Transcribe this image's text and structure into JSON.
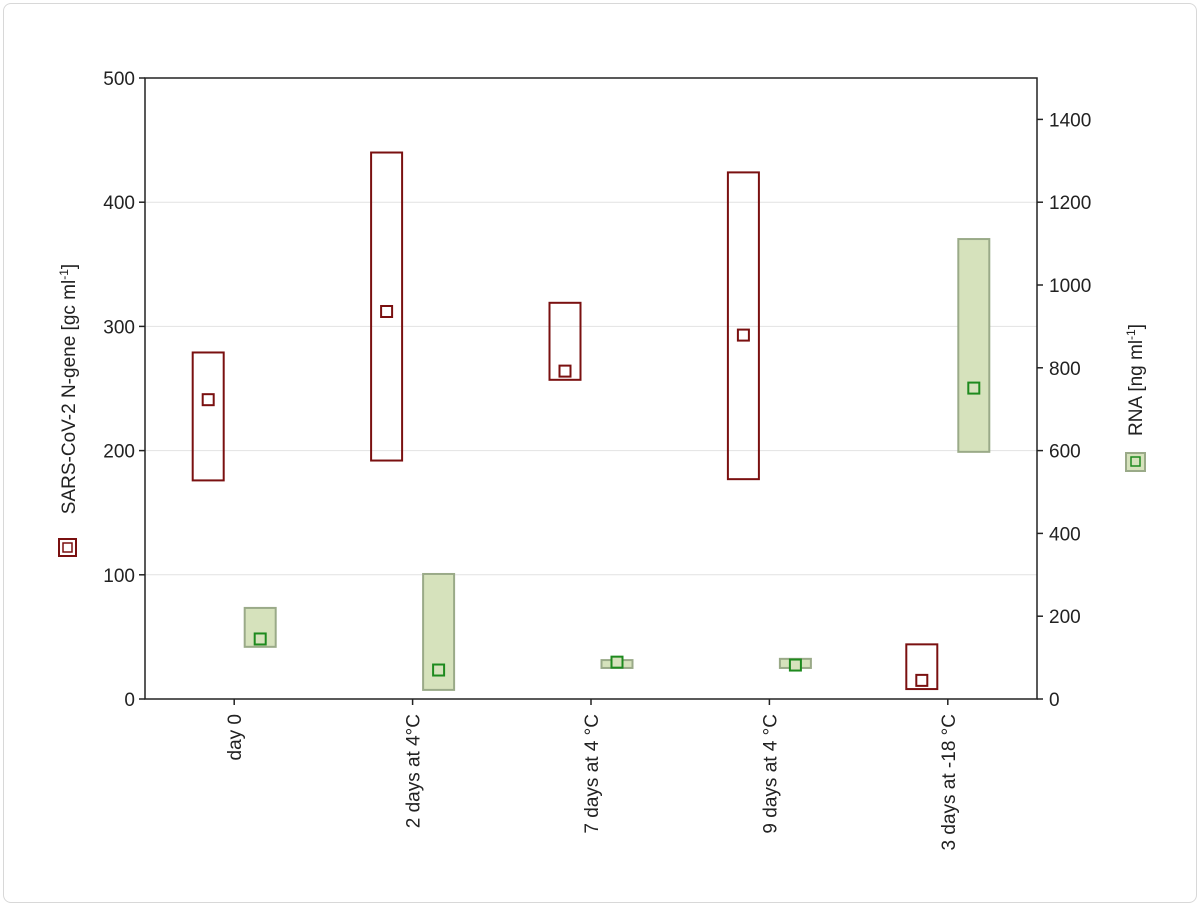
{
  "chart_data": {
    "type": "box",
    "categories": [
      "day 0",
      "2 days at 4°C",
      "7 days at 4 °C",
      "9 days at 4 °C",
      "3 days at -18 °C"
    ],
    "left_axis": {
      "label": "SARS-CoV-2 N-gene [gc ml",
      "label_sup": "-1",
      "label_end": "]",
      "ylim": [
        0,
        500
      ],
      "ticks": [
        0,
        100,
        200,
        300,
        400,
        500
      ]
    },
    "right_axis": {
      "label": "RNA [ng ml",
      "label_sup": "-1",
      "label_end": "]",
      "ylim": [
        0,
        1500
      ],
      "ticks": [
        0,
        200,
        400,
        600,
        800,
        1000,
        1200,
        1400
      ]
    },
    "grid": "horizontal",
    "series": [
      {
        "axis": "left",
        "color": "#7a1010",
        "fill": "none",
        "mean": [
          241,
          312,
          264,
          293,
          15
        ],
        "low": [
          176,
          192,
          257,
          177,
          8
        ],
        "high": [
          279,
          440,
          319,
          424,
          44
        ]
      },
      {
        "axis": "right",
        "color": "#1e8a1e",
        "box_stroke": "#9aaa88",
        "fill": "#d6e2bc",
        "mean": [
          145,
          70,
          89,
          82,
          751
        ],
        "low": [
          126,
          22,
          75,
          75,
          597
        ],
        "high": [
          220,
          302,
          94,
          97,
          1111
        ]
      }
    ]
  }
}
